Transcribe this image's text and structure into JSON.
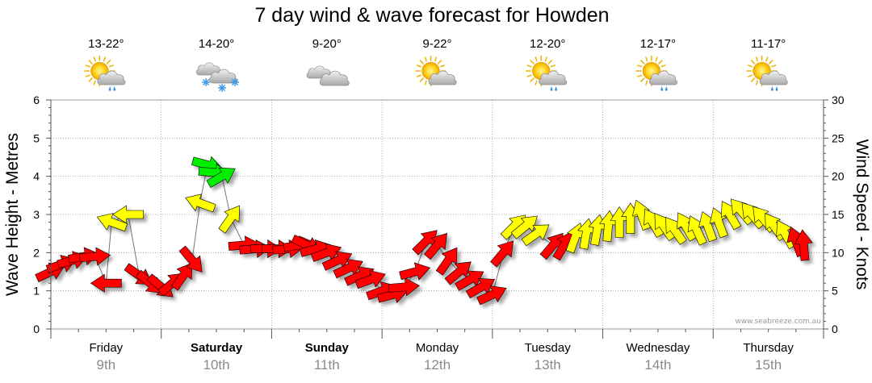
{
  "title": "7 day wind & wave forecast for Howden",
  "credit": "www.seabreeze.com.au",
  "chart_data": {
    "type": "line",
    "title": "7 day wind & wave forecast for Howden",
    "y_left": {
      "label": "Wave Height - Metres",
      "range": [
        0,
        6
      ],
      "ticks": [
        "0",
        "1",
        "2",
        "3",
        "4",
        "5",
        "6"
      ]
    },
    "y_right": {
      "label": "Wind Speed - Knots",
      "range": [
        0,
        30
      ],
      "ticks": [
        "0",
        "5",
        "10",
        "15",
        "20",
        "25",
        "30"
      ]
    },
    "grid": true,
    "days": [
      {
        "name": "Friday",
        "date": "9th",
        "bold": false,
        "temp": "13-22°",
        "icon": "sun-cloud-rain-icon"
      },
      {
        "name": "Saturday",
        "date": "10th",
        "bold": true,
        "temp": "14-20°",
        "icon": "cloud-snow-icon"
      },
      {
        "name": "Sunday",
        "date": "11th",
        "bold": true,
        "temp": "9-20°",
        "icon": "cloud-icon"
      },
      {
        "name": "Monday",
        "date": "12th",
        "bold": false,
        "temp": "9-22°",
        "icon": "sun-cloud-icon"
      },
      {
        "name": "Tuesday",
        "date": "13th",
        "bold": false,
        "temp": "12-20°",
        "icon": "sun-cloud-rain-icon"
      },
      {
        "name": "Wednesday",
        "date": "14th",
        "bold": false,
        "temp": "12-17°",
        "icon": "sun-cloud-rain-icon"
      },
      {
        "name": "Thursday",
        "date": "15th",
        "bold": false,
        "temp": "11-17°",
        "icon": "sun-cloud-rain-icon"
      }
    ],
    "arrow_colors": {
      "light": "#ff0000",
      "moderate": "#ffff00",
      "strong": "#00ee00"
    },
    "wind_series": {
      "name": "Wind Speed",
      "units": "knots",
      "points": [
        {
          "t": 0.0,
          "v": 7.5,
          "dir": -25
        },
        {
          "t": 0.1,
          "v": 8.5,
          "dir": -20
        },
        {
          "t": 0.2,
          "v": 9.0,
          "dir": -15
        },
        {
          "t": 0.3,
          "v": 9.5,
          "dir": -10
        },
        {
          "t": 0.4,
          "v": 9.5,
          "dir": -5
        },
        {
          "t": 0.5,
          "v": 6.0,
          "dir": 180
        },
        {
          "t": 0.55,
          "v": 14.0,
          "dir": 200
        },
        {
          "t": 0.7,
          "v": 15.0,
          "dir": 180
        },
        {
          "t": 0.8,
          "v": 7.0,
          "dir": 35
        },
        {
          "t": 0.9,
          "v": 6.0,
          "dir": 40
        },
        {
          "t": 1.0,
          "v": 5.5,
          "dir": 40
        },
        {
          "t": 1.1,
          "v": 6.0,
          "dir": -40
        },
        {
          "t": 1.2,
          "v": 7.0,
          "dir": -55
        },
        {
          "t": 1.28,
          "v": 9.0,
          "dir": 50
        },
        {
          "t": 1.35,
          "v": 16.5,
          "dir": 200
        },
        {
          "t": 1.42,
          "v": 21.5,
          "dir": 15
        },
        {
          "t": 1.48,
          "v": 20.5,
          "dir": 5
        },
        {
          "t": 1.55,
          "v": 20.0,
          "dir": -30
        },
        {
          "t": 1.63,
          "v": 14.5,
          "dir": -55
        },
        {
          "t": 1.75,
          "v": 11.0,
          "dir": -5
        },
        {
          "t": 1.85,
          "v": 10.5,
          "dir": -5
        },
        {
          "t": 1.95,
          "v": 10.5,
          "dir": 0
        },
        {
          "t": 2.05,
          "v": 10.5,
          "dir": 0
        },
        {
          "t": 2.15,
          "v": 10.5,
          "dir": -5
        },
        {
          "t": 2.25,
          "v": 11.0,
          "dir": -10
        },
        {
          "t": 2.32,
          "v": 11.0,
          "dir": 25
        },
        {
          "t": 2.4,
          "v": 10.5,
          "dir": -15
        },
        {
          "t": 2.5,
          "v": 10.0,
          "dir": -20
        },
        {
          "t": 2.6,
          "v": 9.0,
          "dir": -25
        },
        {
          "t": 2.7,
          "v": 8.0,
          "dir": -25
        },
        {
          "t": 2.8,
          "v": 7.0,
          "dir": -25
        },
        {
          "t": 2.9,
          "v": 6.5,
          "dir": -20
        },
        {
          "t": 3.0,
          "v": 5.0,
          "dir": -20
        },
        {
          "t": 3.1,
          "v": 4.5,
          "dir": -15
        },
        {
          "t": 3.2,
          "v": 5.5,
          "dir": -5
        },
        {
          "t": 3.3,
          "v": 7.5,
          "dir": -15
        },
        {
          "t": 3.4,
          "v": 11.5,
          "dir": -45
        },
        {
          "t": 3.5,
          "v": 11.0,
          "dir": -50
        },
        {
          "t": 3.6,
          "v": 9.0,
          "dir": -55
        },
        {
          "t": 3.7,
          "v": 7.5,
          "dir": -40
        },
        {
          "t": 3.8,
          "v": 6.5,
          "dir": -30
        },
        {
          "t": 3.9,
          "v": 5.5,
          "dir": -30
        },
        {
          "t": 4.0,
          "v": 4.5,
          "dir": -25
        },
        {
          "t": 4.1,
          "v": 10.0,
          "dir": -50
        },
        {
          "t": 4.2,
          "v": 13.5,
          "dir": -45
        },
        {
          "t": 4.3,
          "v": 13.5,
          "dir": -40
        },
        {
          "t": 4.4,
          "v": 12.5,
          "dir": -35
        },
        {
          "t": 4.55,
          "v": 11.0,
          "dir": -50
        },
        {
          "t": 4.65,
          "v": 11.0,
          "dir": -60
        },
        {
          "t": 4.75,
          "v": 12.0,
          "dir": -70
        },
        {
          "t": 4.85,
          "v": 12.5,
          "dir": -80
        },
        {
          "t": 4.95,
          "v": 13.0,
          "dir": -80
        },
        {
          "t": 5.05,
          "v": 13.5,
          "dir": -85
        },
        {
          "t": 5.15,
          "v": 14.0,
          "dir": -90
        },
        {
          "t": 5.25,
          "v": 14.5,
          "dir": -90
        },
        {
          "t": 5.35,
          "v": 15.0,
          "dir": -110
        },
        {
          "t": 5.45,
          "v": 14.0,
          "dir": -120
        },
        {
          "t": 5.55,
          "v": 13.5,
          "dir": -125
        },
        {
          "t": 5.65,
          "v": 13.0,
          "dir": -125
        },
        {
          "t": 5.75,
          "v": 13.5,
          "dir": -120
        },
        {
          "t": 5.85,
          "v": 13.0,
          "dir": -115
        },
        {
          "t": 5.95,
          "v": 13.5,
          "dir": -110
        },
        {
          "t": 6.05,
          "v": 14.0,
          "dir": -110
        },
        {
          "t": 6.15,
          "v": 15.0,
          "dir": -120
        },
        {
          "t": 6.25,
          "v": 15.5,
          "dir": -130
        },
        {
          "t": 6.35,
          "v": 15.0,
          "dir": -130
        },
        {
          "t": 6.45,
          "v": 14.5,
          "dir": -130
        },
        {
          "t": 6.55,
          "v": 13.5,
          "dir": -125
        },
        {
          "t": 6.65,
          "v": 12.5,
          "dir": -120
        },
        {
          "t": 6.75,
          "v": 11.5,
          "dir": -110
        },
        {
          "t": 6.82,
          "v": 11.0,
          "dir": -95
        }
      ]
    }
  }
}
